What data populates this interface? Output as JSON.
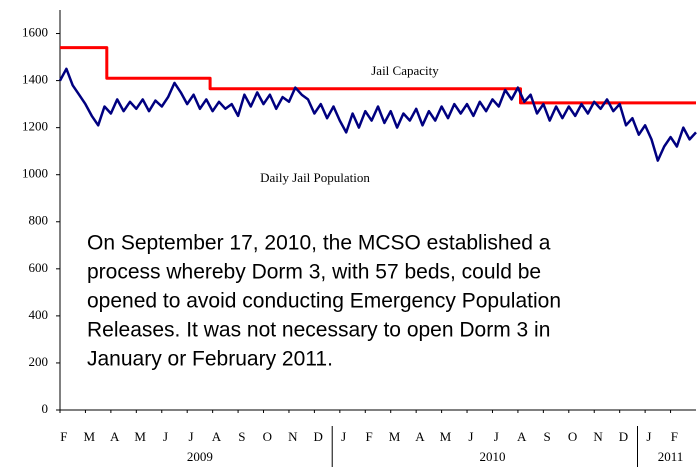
{
  "chart_data": {
    "type": "line",
    "xlim": [
      0,
      25
    ],
    "ylim": [
      0,
      1700
    ],
    "yticks": [
      0,
      200,
      400,
      600,
      800,
      1000,
      1200,
      1400,
      1600
    ],
    "xticks": [
      {
        "value": 0,
        "label": "F"
      },
      {
        "value": 1,
        "label": "M"
      },
      {
        "value": 2,
        "label": "A"
      },
      {
        "value": 3,
        "label": "M"
      },
      {
        "value": 4,
        "label": "J"
      },
      {
        "value": 5,
        "label": "J"
      },
      {
        "value": 6,
        "label": "A"
      },
      {
        "value": 7,
        "label": "S"
      },
      {
        "value": 8,
        "label": "O"
      },
      {
        "value": 9,
        "label": "N"
      },
      {
        "value": 10,
        "label": "D"
      },
      {
        "value": 11,
        "label": "J"
      },
      {
        "value": 12,
        "label": "F"
      },
      {
        "value": 13,
        "label": "M"
      },
      {
        "value": 14,
        "label": "A"
      },
      {
        "value": 15,
        "label": "M"
      },
      {
        "value": 16,
        "label": "J"
      },
      {
        "value": 17,
        "label": "J"
      },
      {
        "value": 18,
        "label": "A"
      },
      {
        "value": 19,
        "label": "S"
      },
      {
        "value": 20,
        "label": "O"
      },
      {
        "value": 21,
        "label": "N"
      },
      {
        "value": 22,
        "label": "D"
      },
      {
        "value": 23,
        "label": "J"
      },
      {
        "value": 24,
        "label": "F"
      }
    ],
    "year_groups": [
      {
        "label": "2009",
        "from": 0,
        "to": 11
      },
      {
        "label": "2010",
        "from": 11,
        "to": 23
      },
      {
        "label": "2011",
        "from": 23,
        "to": 25
      }
    ],
    "series": [
      {
        "name": "Jail Capacity",
        "color": "#ff0000",
        "x": [
          0,
          1.84,
          1.84,
          5.9,
          5.9,
          18.1,
          18.1,
          25
        ],
        "values": [
          1540,
          1540,
          1410,
          1410,
          1365,
          1365,
          1305,
          1305
        ]
      },
      {
        "name": "Daily Jail Population",
        "color": "#000080",
        "x": [
          0,
          0.25,
          0.5,
          0.75,
          1,
          1.25,
          1.5,
          1.75,
          2,
          2.25,
          2.5,
          2.75,
          3,
          3.25,
          3.5,
          3.75,
          4,
          4.25,
          4.5,
          4.75,
          5,
          5.25,
          5.5,
          5.75,
          6,
          6.25,
          6.5,
          6.75,
          7,
          7.25,
          7.5,
          7.75,
          8,
          8.25,
          8.5,
          8.75,
          9,
          9.25,
          9.5,
          9.75,
          10,
          10.25,
          10.5,
          10.75,
          11,
          11.25,
          11.5,
          11.75,
          12,
          12.25,
          12.5,
          12.75,
          13,
          13.25,
          13.5,
          13.75,
          14,
          14.25,
          14.5,
          14.75,
          15,
          15.25,
          15.5,
          15.75,
          16,
          16.25,
          16.5,
          16.75,
          17,
          17.25,
          17.5,
          17.75,
          18,
          18.25,
          18.5,
          18.75,
          19,
          19.25,
          19.5,
          19.75,
          20,
          20.25,
          20.5,
          20.75,
          21,
          21.25,
          21.5,
          21.75,
          22,
          22.25,
          22.5,
          22.75,
          23,
          23.25,
          23.5,
          23.75,
          24,
          24.25,
          24.5,
          24.75,
          25
        ],
        "values": [
          1400,
          1450,
          1380,
          1340,
          1300,
          1250,
          1210,
          1290,
          1260,
          1320,
          1270,
          1310,
          1280,
          1320,
          1270,
          1315,
          1290,
          1330,
          1390,
          1350,
          1300,
          1340,
          1280,
          1320,
          1270,
          1310,
          1280,
          1300,
          1250,
          1340,
          1290,
          1350,
          1300,
          1340,
          1280,
          1330,
          1310,
          1370,
          1340,
          1320,
          1260,
          1300,
          1240,
          1290,
          1230,
          1180,
          1260,
          1200,
          1270,
          1230,
          1290,
          1220,
          1270,
          1200,
          1260,
          1230,
          1280,
          1210,
          1270,
          1230,
          1290,
          1240,
          1300,
          1260,
          1300,
          1250,
          1310,
          1270,
          1320,
          1290,
          1360,
          1320,
          1370,
          1310,
          1340,
          1260,
          1300,
          1230,
          1290,
          1240,
          1290,
          1250,
          1300,
          1260,
          1310,
          1280,
          1320,
          1270,
          1300,
          1210,
          1240,
          1170,
          1210,
          1150,
          1060,
          1120,
          1160,
          1120,
          1200,
          1150,
          1180
        ]
      }
    ],
    "annotation": [
      "On September 17, 2010, the MCSO established a",
      "process whereby Dorm 3, with 57 beds, could be",
      "opened to avoid conducting Emergency Population",
      "Releases. It was not necessary to open Dorm 3 in",
      "January or February 2011."
    ]
  }
}
